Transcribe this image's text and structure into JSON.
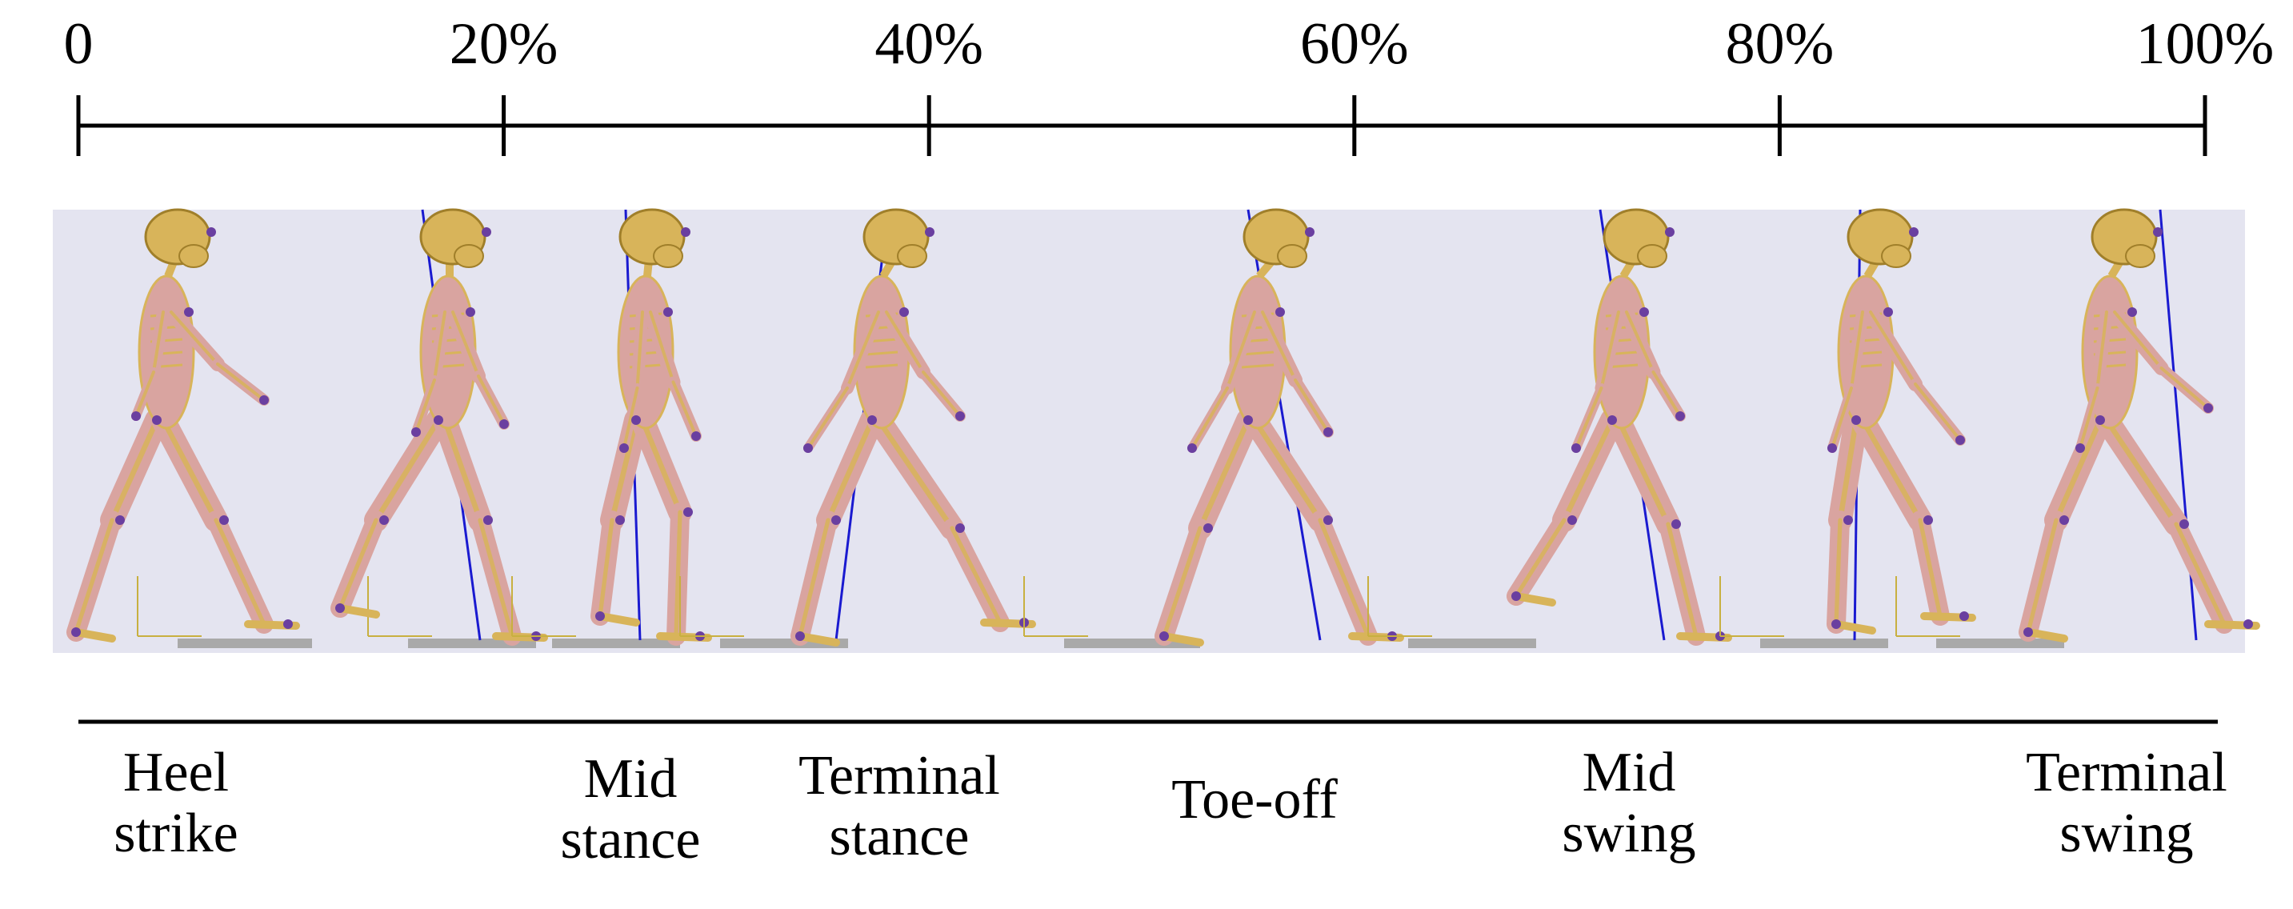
{
  "timeline": {
    "ticks": [
      {
        "label": "0",
        "pct": 0
      },
      {
        "label": "20%",
        "pct": 20
      },
      {
        "label": "40%",
        "pct": 40
      },
      {
        "label": "60%",
        "pct": 60
      },
      {
        "label": "80%",
        "pct": 80
      },
      {
        "label": "100%",
        "pct": 100
      }
    ]
  },
  "phases": [
    {
      "line1": "Heel",
      "line2": "strike"
    },
    {
      "line1": "Mid",
      "line2": "stance"
    },
    {
      "line1": "Terminal",
      "line2": "stance"
    },
    {
      "line1": "Toe-off",
      "line2": ""
    },
    {
      "line1": "Mid",
      "line2": "swing"
    },
    {
      "line1": "Terminal",
      "line2": "swing"
    }
  ],
  "colors": {
    "panel_background": "#e4e4f0",
    "muscle": "#d9a4a0",
    "bone": "#d8b45a",
    "marker": "#6a3fa0",
    "force_line": "#1a1ad0",
    "floor": "#a9a9a9"
  }
}
